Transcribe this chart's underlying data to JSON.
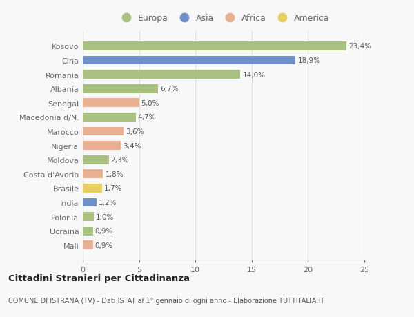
{
  "countries": [
    "Kosovo",
    "Cina",
    "Romania",
    "Albania",
    "Senegal",
    "Macedonia d/N.",
    "Marocco",
    "Nigeria",
    "Moldova",
    "Costa d'Avorio",
    "Brasile",
    "India",
    "Polonia",
    "Ucraina",
    "Mali"
  ],
  "values": [
    23.4,
    18.9,
    14.0,
    6.7,
    5.0,
    4.7,
    3.6,
    3.4,
    2.3,
    1.8,
    1.7,
    1.2,
    1.0,
    0.9,
    0.9
  ],
  "labels": [
    "23,4%",
    "18,9%",
    "14,0%",
    "6,7%",
    "5,0%",
    "4,7%",
    "3,6%",
    "3,4%",
    "2,3%",
    "1,8%",
    "1,7%",
    "1,2%",
    "1,0%",
    "0,9%",
    "0,9%"
  ],
  "continents": [
    "Europa",
    "Asia",
    "Europa",
    "Europa",
    "Africa",
    "Europa",
    "Africa",
    "Africa",
    "Europa",
    "Africa",
    "America",
    "Asia",
    "Europa",
    "Europa",
    "Africa"
  ],
  "continent_colors": {
    "Europa": "#a8c080",
    "Asia": "#7090c8",
    "Africa": "#e8b090",
    "America": "#e8d060"
  },
  "legend_order": [
    "Europa",
    "Asia",
    "Africa",
    "America"
  ],
  "title": "Cittadini Stranieri per Cittadinanza",
  "subtitle": "COMUNE DI ISTRANA (TV) - Dati ISTAT al 1° gennaio di ogni anno - Elaborazione TUTTITALIA.IT",
  "xlim": [
    0,
    25
  ],
  "xticks": [
    0,
    5,
    10,
    15,
    20,
    25
  ],
  "background_color": "#f8f8f8",
  "bar_height": 0.62,
  "grid_color": "#dddddd",
  "label_color": "#555555",
  "tick_color": "#666666"
}
